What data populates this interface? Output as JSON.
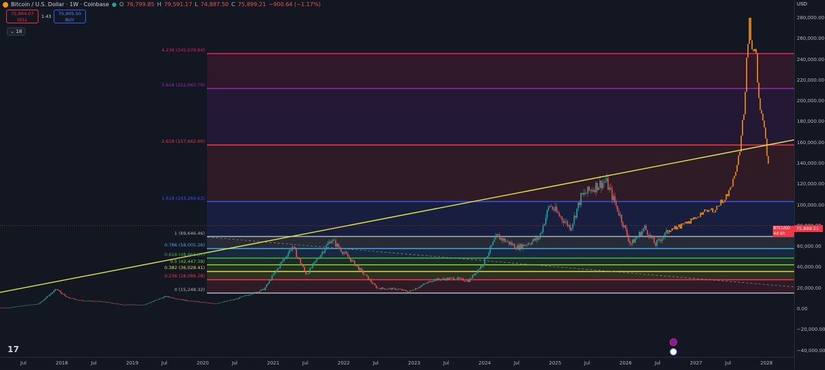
{
  "legend": {
    "symbol": "Bitcoin / U.S. Dollar · 1W · Coinbase",
    "o_label": "O",
    "o": "76,799.85",
    "h_label": "H",
    "h": "79,591.17",
    "l_label": "L",
    "l": "74,887.50",
    "c_label": "C",
    "c": "75,899.21",
    "change": "−900.64 (−1.17%)"
  },
  "trade": {
    "sell_price": "75,904.07",
    "sell_label": "SELL",
    "spread": "1.43",
    "buy_price": "75,905.50",
    "buy_label": "BUY"
  },
  "indicators_count": "18",
  "currency": "USD",
  "price_tag": {
    "symbol": "BTCUSD",
    "price": "75,899.21",
    "countdown": "4d 6h"
  },
  "colors": {
    "background": "#131722",
    "up": "#26a69a",
    "down": "#ef5350",
    "projection": "#f7931a",
    "trendline": "#e8e84a"
  },
  "chart_data": {
    "type": "candlestick",
    "y_axis_ticks": [
      "280,000.00",
      "260,000.00",
      "240,000.00",
      "220,000.00",
      "200,000.00",
      "180,000.00",
      "160,000.00",
      "140,000.00",
      "120,000.00",
      "100,000.00",
      "80,000.00",
      "60,000.00",
      "40,000.00",
      "20,000.00",
      "0.00",
      "−20,000.00",
      "−40,000.00"
    ],
    "ylim": [
      -42000,
      286000
    ],
    "x_axis_ticks": [
      "Jul",
      "2018",
      "Jul",
      "2019",
      "Jul",
      "2020",
      "Jul",
      "2021",
      "Jul",
      "2022",
      "Jul",
      "2023",
      "Jul",
      "2024",
      "Jul",
      "2025",
      "Jul",
      "2026",
      "Jul",
      "2027",
      "Jul",
      "2028"
    ],
    "fib_levels": [
      {
        "ratio": "0",
        "label": "0 (15,248.32)",
        "value": 15248.32,
        "color": "#b2b5be"
      },
      {
        "ratio": "0.236",
        "label": "0.236 (28,086.28)",
        "value": 28086.28,
        "color": "#f23645"
      },
      {
        "ratio": "0.382",
        "label": "0.382 (36,028.41)",
        "value": 36028.41,
        "color": "#e0e040"
      },
      {
        "ratio": "0.5",
        "label": "0.5 (42,447.39)",
        "value": 42447.39,
        "color": "#7ed321"
      },
      {
        "ratio": "0.618",
        "label": "0.618 (48,866.37)",
        "value": 48866.37,
        "color": "#4caf50"
      },
      {
        "ratio": "0.786",
        "label": "0.786 (58,005.26)",
        "value": 58005.26,
        "color": "#42a5f5"
      },
      {
        "ratio": "1",
        "label": "1 (69,646.46)",
        "value": 69646.46,
        "color": "#b2b5be"
      },
      {
        "ratio": "1.618",
        "label": "1.618 (103,264.63)",
        "value": 103264.63,
        "color": "#3f51f5"
      },
      {
        "ratio": "2.618",
        "label": "2.618 (157,662.65)",
        "value": 157662.65,
        "color": "#f23645"
      },
      {
        "ratio": "3.618",
        "label": "3.618 (212,060.79)",
        "value": 212060.79,
        "color": "#9c27b0"
      },
      {
        "ratio": "4.236",
        "label": "4.236 (245,678.84)",
        "value": 245678.84,
        "color": "#e91e63"
      }
    ],
    "price_path": [
      [
        2017.3,
        1500
      ],
      [
        2017.7,
        5000
      ],
      [
        2017.95,
        19000
      ],
      [
        2018.1,
        11000
      ],
      [
        2018.3,
        8000
      ],
      [
        2018.6,
        7000
      ],
      [
        2018.9,
        4000
      ],
      [
        2019.2,
        4000
      ],
      [
        2019.5,
        12000
      ],
      [
        2019.8,
        8000
      ],
      [
        2020.2,
        5000
      ],
      [
        2020.5,
        9500
      ],
      [
        2020.9,
        19000
      ],
      [
        2021.1,
        40000
      ],
      [
        2021.3,
        60000
      ],
      [
        2021.5,
        33000
      ],
      [
        2021.85,
        67000
      ],
      [
        2022.2,
        42000
      ],
      [
        2022.5,
        20000
      ],
      [
        2022.8,
        19000
      ],
      [
        2022.95,
        16500
      ],
      [
        2023.3,
        28000
      ],
      [
        2023.6,
        29500
      ],
      [
        2023.8,
        27000
      ],
      [
        2024.0,
        43000
      ],
      [
        2024.2,
        70000
      ],
      [
        2024.5,
        59000
      ],
      [
        2024.8,
        68000
      ],
      [
        2024.95,
        100000
      ],
      [
        2025.25,
        78000
      ],
      [
        2025.4,
        108000
      ],
      [
        2025.6,
        118000
      ],
      [
        2025.75,
        123000
      ],
      [
        2025.95,
        90000
      ],
      [
        2026.1,
        62000
      ],
      [
        2026.3,
        78000
      ],
      [
        2026.45,
        62000
      ],
      [
        2026.65,
        75900
      ]
    ],
    "projection_path": [
      [
        2026.65,
        75900
      ],
      [
        2026.9,
        82000
      ],
      [
        2027.1,
        92000
      ],
      [
        2027.3,
        96000
      ],
      [
        2027.5,
        112000
      ],
      [
        2027.65,
        150000
      ],
      [
        2027.72,
        200000
      ],
      [
        2027.78,
        282000
      ],
      [
        2027.83,
        240000
      ],
      [
        2027.87,
        255000
      ],
      [
        2027.92,
        200000
      ],
      [
        2027.97,
        185000
      ],
      [
        2028.02,
        158000
      ],
      [
        2028.06,
        132000
      ]
    ],
    "trendline": [
      [
        2016.7,
        10000
      ],
      [
        2028.45,
        163000
      ]
    ],
    "dashed_line": [
      [
        2020.1,
        69000
      ],
      [
        2028.45,
        21000
      ]
    ]
  }
}
